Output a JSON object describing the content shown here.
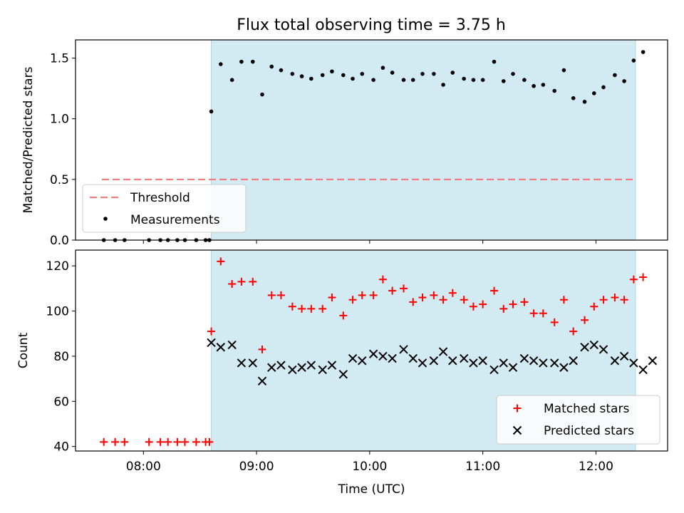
{
  "figure": {
    "title": "Flux total observing time = 3.75 h"
  },
  "colors": {
    "observing_span": "#add8e6",
    "threshold": "#f08080",
    "matched": "#ff0000",
    "predicted": "#000000",
    "measurement": "#000000"
  },
  "chart_data": [
    {
      "type": "scatter",
      "panel": "top",
      "ylabel": "Matched/Predicted stars",
      "xlabel": "",
      "xlim": [
        "07:24",
        "12:38"
      ],
      "ylim": [
        0,
        1.65
      ],
      "yticks": [
        0.0,
        0.5,
        1.0,
        1.5
      ],
      "ytick_labels": [
        "0.0",
        "0.5",
        "1.0",
        "1.5"
      ],
      "xticks": [
        "08:00",
        "09:00",
        "10:00",
        "11:00",
        "12:00"
      ],
      "observing_span": [
        "08:36",
        "12:21"
      ],
      "threshold": {
        "name": "Threshold",
        "y": 0.5,
        "x_range": [
          "07:38",
          "12:21"
        ]
      },
      "legend": {
        "placement": "lower-left",
        "entries": [
          "Threshold",
          "Measurements"
        ]
      },
      "series": [
        {
          "name": "Measurements",
          "x": [
            "07:39",
            "07:45",
            "07:50",
            "08:03",
            "08:09",
            "08:13",
            "08:18",
            "08:22",
            "08:28",
            "08:33",
            "08:35",
            "08:36",
            "08:41",
            "08:47",
            "08:52",
            "08:58",
            "09:03",
            "09:08",
            "09:13",
            "09:19",
            "09:24",
            "09:29",
            "09:35",
            "09:40",
            "09:46",
            "09:51",
            "09:56",
            "10:02",
            "10:07",
            "10:12",
            "10:18",
            "10:23",
            "10:28",
            "10:34",
            "10:39",
            "10:44",
            "10:50",
            "10:55",
            "11:00",
            "11:06",
            "11:11",
            "11:16",
            "11:22",
            "11:27",
            "11:32",
            "11:38",
            "11:43",
            "11:48",
            "11:54",
            "11:59",
            "12:04",
            "12:10",
            "12:15",
            "12:20",
            "12:25"
          ],
          "y": [
            0,
            0,
            0,
            0,
            0,
            0,
            0,
            0,
            0,
            0,
            0,
            1.06,
            1.45,
            1.32,
            1.47,
            1.47,
            1.2,
            1.43,
            1.4,
            1.37,
            1.35,
            1.33,
            1.36,
            1.39,
            1.36,
            1.33,
            1.37,
            1.32,
            1.42,
            1.38,
            1.32,
            1.32,
            1.37,
            1.37,
            1.28,
            1.38,
            1.33,
            1.32,
            1.32,
            1.47,
            1.31,
            1.37,
            1.32,
            1.27,
            1.28,
            1.23,
            1.4,
            1.17,
            1.14,
            1.21,
            1.26,
            1.36,
            1.31,
            1.48,
            1.55
          ]
        }
      ]
    },
    {
      "type": "scatter",
      "panel": "bottom",
      "ylabel": "Count",
      "xlabel": "Time (UTC)",
      "xlim": [
        "07:24",
        "12:38"
      ],
      "ylim": [
        38,
        127
      ],
      "yticks": [
        40,
        60,
        80,
        100,
        120
      ],
      "ytick_labels": [
        "40",
        "60",
        "80",
        "100",
        "120"
      ],
      "xticks": [
        "08:00",
        "09:00",
        "10:00",
        "11:00",
        "12:00"
      ],
      "observing_span": [
        "08:36",
        "12:21"
      ],
      "legend": {
        "placement": "lower-right",
        "entries": [
          "Matched stars",
          "Predicted stars"
        ]
      },
      "series": [
        {
          "name": "Matched stars",
          "marker": "plus",
          "x": [
            "07:39",
            "07:45",
            "07:50",
            "08:03",
            "08:09",
            "08:13",
            "08:18",
            "08:22",
            "08:28",
            "08:33",
            "08:35",
            "08:36",
            "08:41",
            "08:47",
            "08:52",
            "08:58",
            "09:03",
            "09:08",
            "09:13",
            "09:19",
            "09:24",
            "09:29",
            "09:35",
            "09:40",
            "09:46",
            "09:51",
            "09:56",
            "10:02",
            "10:07",
            "10:12",
            "10:18",
            "10:23",
            "10:28",
            "10:34",
            "10:39",
            "10:44",
            "10:50",
            "10:55",
            "11:00",
            "11:06",
            "11:11",
            "11:16",
            "11:22",
            "11:27",
            "11:32",
            "11:38",
            "11:43",
            "11:48",
            "11:54",
            "11:59",
            "12:04",
            "12:10",
            "12:15",
            "12:20",
            "12:25"
          ],
          "y": [
            42,
            42,
            42,
            42,
            42,
            42,
            42,
            42,
            42,
            42,
            42,
            91,
            122,
            112,
            113,
            113,
            83,
            107,
            107,
            102,
            101,
            101,
            101,
            106,
            98,
            105,
            107,
            107,
            114,
            109,
            110,
            104,
            106,
            107,
            105,
            108,
            105,
            102,
            103,
            109,
            101,
            103,
            104,
            99,
            99,
            95,
            105,
            91,
            96,
            102,
            105,
            106,
            105,
            114,
            115
          ]
        },
        {
          "name": "Predicted stars",
          "marker": "x",
          "x": [
            "08:36",
            "08:41",
            "08:47",
            "08:52",
            "08:58",
            "09:03",
            "09:08",
            "09:13",
            "09:19",
            "09:24",
            "09:29",
            "09:35",
            "09:40",
            "09:46",
            "09:51",
            "09:56",
            "10:02",
            "10:07",
            "10:12",
            "10:18",
            "10:23",
            "10:28",
            "10:34",
            "10:39",
            "10:44",
            "10:50",
            "10:55",
            "11:00",
            "11:06",
            "11:11",
            "11:16",
            "11:22",
            "11:27",
            "11:32",
            "11:38",
            "11:43",
            "11:48",
            "11:54",
            "11:59",
            "12:04",
            "12:10",
            "12:15",
            "12:20",
            "12:25",
            "12:30"
          ],
          "y": [
            86,
            84,
            85,
            77,
            77,
            69,
            75,
            76,
            74,
            75,
            76,
            74,
            76,
            72,
            79,
            78,
            81,
            80,
            79,
            83,
            79,
            77,
            78,
            82,
            78,
            79,
            77,
            78,
            74,
            77,
            75,
            79,
            78,
            77,
            77,
            75,
            78,
            84,
            85,
            83,
            78,
            80,
            77,
            74,
            78
          ]
        }
      ]
    }
  ]
}
